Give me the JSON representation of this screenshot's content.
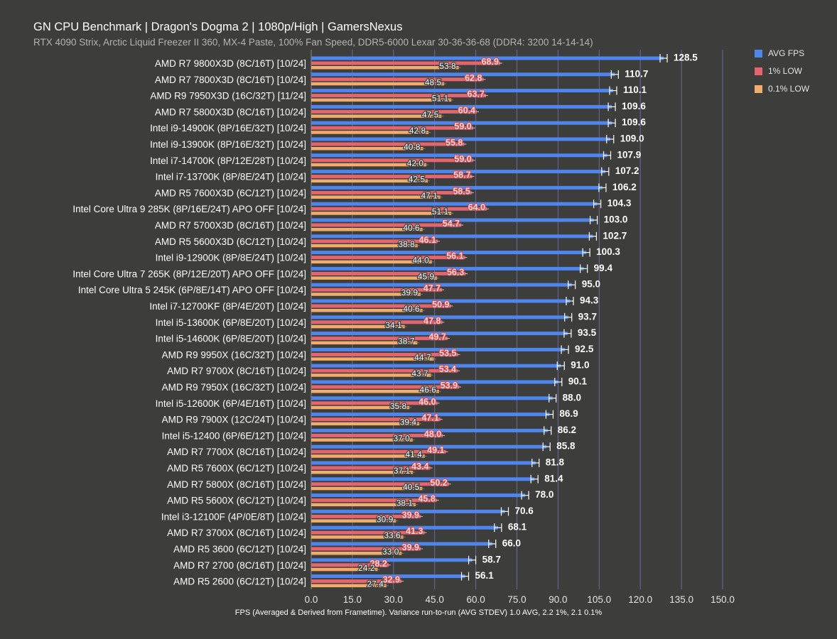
{
  "title": "GN CPU Benchmark | Dragon's Dogma 2 | 1080p/High | GamersNexus",
  "subtitle": "RTX 4090 Strix, Arctic Liquid Freezer II 360, MX-4 Paste, 100% Fan Speed, DDR5-6000 Lexar 30-36-36-68 (DDR4: 3200 14-14-14)",
  "colors": {
    "background": "#3d3d3c",
    "avg": "#4f86ee",
    "low1": "#e2656f",
    "low01": "#f2ad6c",
    "gridline": "#6a6a9a",
    "label_low1_text": "#ffd0d0",
    "error_bar": "#ffffff"
  },
  "chart_data": {
    "type": "bar",
    "orientation": "horizontal",
    "title": "GN CPU Benchmark | Dragon's Dogma 2 | 1080p/High | GamersNexus",
    "subtitle": "RTX 4090 Strix, Arctic Liquid Freezer II 360, MX-4 Paste, 100% Fan Speed, DDR5-6000 Lexar 30-36-36-68 (DDR4: 3200 14-14-14)",
    "xlabel": "FPS (Averaged & Derived from Frametime). Variance run-to-run (AVG STDEV) 1.0 AVG, 2.2 1%, 2.1 0.1%",
    "ylabel": "",
    "xlim": [
      0,
      150
    ],
    "xticks": [
      "0.0",
      "15.0",
      "30.0",
      "45.0",
      "60.0",
      "75.0",
      "90.0",
      "105.0",
      "120.0",
      "135.0",
      "150.0"
    ],
    "grid": true,
    "legend_position": "top-right",
    "categories": [
      "AMD R7 9800X3D (8C/16T) [10/24]",
      "AMD R7 7800X3D (8C/16T) [10/24]",
      "AMD R9 7950X3D (16C/32T) [11/24]",
      "AMD R7 5800X3D (8C/16T) [10/24]",
      "Intel i9-14900K (8P/16E/32T) [10/24]",
      "Intel i9-13900K (8P/16E/32T) [10/24]",
      "Intel i7-14700K (8P/12E/28T) [10/24]",
      "Intel i7-13700K (8P/8E/24T) [10/24]",
      "AMD R5 7600X3D (6C/12T) [10/24]",
      "Intel Core Ultra 9 285K (8P/16E/24T) APO OFF [10/24]",
      "AMD R7 5700X3D (8C/16T) [10/24]",
      "AMD R5 5600X3D (6C/12T) [10/24]",
      "Intel i9-12900K (8P/8E/24T) [10/24]",
      "Intel Core Ultra 7 265K (8P/12E/20T) APO OFF [10/24]",
      "Intel Core Ultra 5 245K (6P/8E/14T) APO OFF [10/24]",
      "Intel i7-12700KF (8P/4E/20T) [10/24]",
      "Intel i5-13600K (6P/8E/20T) [10/24]",
      "Intel i5-14600K (6P/8E/20T) [10/24]",
      "AMD R9 9950X (16C/32T) [10/24]",
      "AMD R7 9700X (8C/16T) [10/24]",
      "AMD R9 7950X (16C/32T) [10/24]",
      "Intel i5-12600K (6P/4E/16T) [10/24]",
      "AMD R9 7900X (12C/24T) [10/24]",
      "Intel i5-12400 (6P/6E/12T) [10/24]",
      "AMD R7 7700X (8C/16T) [10/24]",
      "AMD R5 7600X (6C/12T) [10/24]",
      "AMD R7 5800X (8C/16T) [10/24]",
      "AMD R5 5600X (6C/12T) [10/24]",
      "Intel i3-12100F (4P/0E/8T) [10/24]",
      "AMD R7 3700X (8C/16T) [10/24]",
      "AMD R5 3600 (6C/12T) [10/24]",
      "AMD R7 2700 (8C/16T) [10/24]",
      "AMD R5 2600 (6C/12T) [10/24]"
    ],
    "series": [
      {
        "name": "AVG FPS",
        "color": "#4f86ee",
        "values": [
          128.5,
          110.7,
          110.1,
          109.6,
          109.6,
          109.0,
          107.9,
          107.2,
          106.2,
          104.3,
          103.0,
          102.7,
          100.3,
          99.4,
          95.0,
          94.3,
          93.7,
          93.5,
          92.5,
          91.0,
          90.1,
          88.0,
          86.9,
          86.2,
          85.8,
          81.8,
          81.4,
          78.0,
          70.6,
          68.1,
          66.0,
          58.7,
          56.1
        ],
        "labels": [
          "128.5",
          "110.7",
          "110.1",
          "109.6",
          "109.6",
          "109.0",
          "107.9",
          "107.2",
          "106.2",
          "104.3",
          "103.0",
          "102.7",
          "100.3",
          "99.4",
          "95.0",
          "94.3",
          "93.7",
          "93.5",
          "92.5",
          "91.0",
          "90.1",
          "88.0",
          "86.9",
          "86.2",
          "85.8",
          "81.8",
          "81.4",
          "78.0",
          "70.6",
          "68.1",
          "66.0",
          "58.7",
          "56.1"
        ]
      },
      {
        "name": "1% LOW",
        "color": "#e2656f",
        "values": [
          68.9,
          62.8,
          63.7,
          60.4,
          59.0,
          55.8,
          59.0,
          58.7,
          58.5,
          64.0,
          54.7,
          46.1,
          56.1,
          56.3,
          47.7,
          50.9,
          47.8,
          49.7,
          53.5,
          53.4,
          53.9,
          46.0,
          47.1,
          48.0,
          49.1,
          43.4,
          50.2,
          45.8,
          39.9,
          41.3,
          39.9,
          28.2,
          32.9
        ],
        "labels": [
          "68.9",
          "62.8",
          "63.7",
          "60.4",
          "59.0",
          "55.8",
          "59.0",
          "58.7",
          "58.5",
          "64.0",
          "54.7",
          "46.1",
          "56.1",
          "56.3",
          "47.7",
          "50.9",
          "47.8",
          "49.7",
          "53.5",
          "53.4",
          "53.9",
          "46.0",
          "47.1",
          "48.0",
          "49.1",
          "43.4",
          "50.2",
          "45.8",
          "39.9",
          "41.3",
          "39.9",
          "28.2",
          "32.9"
        ]
      },
      {
        "name": "0.1% LOW",
        "color": "#f2ad6c",
        "values": [
          53.8,
          48.5,
          51.1,
          47.5,
          42.8,
          40.8,
          42.0,
          42.5,
          47.1,
          51.1,
          40.6,
          38.8,
          44.0,
          45.9,
          39.9,
          40.6,
          34.1,
          38.7,
          44.7,
          43.7,
          46.6,
          35.8,
          39.4,
          37.0,
          41.4,
          37.1,
          40.5,
          38.1,
          30.9,
          33.6,
          33.0,
          24.2,
          27.4
        ],
        "labels": [
          "53.8",
          "48.5",
          "51.1",
          "47.5",
          "42.8",
          "40.8",
          "42.0",
          "42.5",
          "47.1",
          "51.1",
          "40.6",
          "38.8",
          "44.0",
          "45.9",
          "39.9",
          "40.6",
          "34.1",
          "38.7",
          "44.7",
          "43.7",
          "46.6",
          "35.8",
          "39.4",
          "37.0",
          "41.4",
          "37.1",
          "40.5",
          "38.1",
          "30.9",
          "33.6",
          "33.0",
          "24.2",
          "27.4"
        ]
      }
    ]
  }
}
